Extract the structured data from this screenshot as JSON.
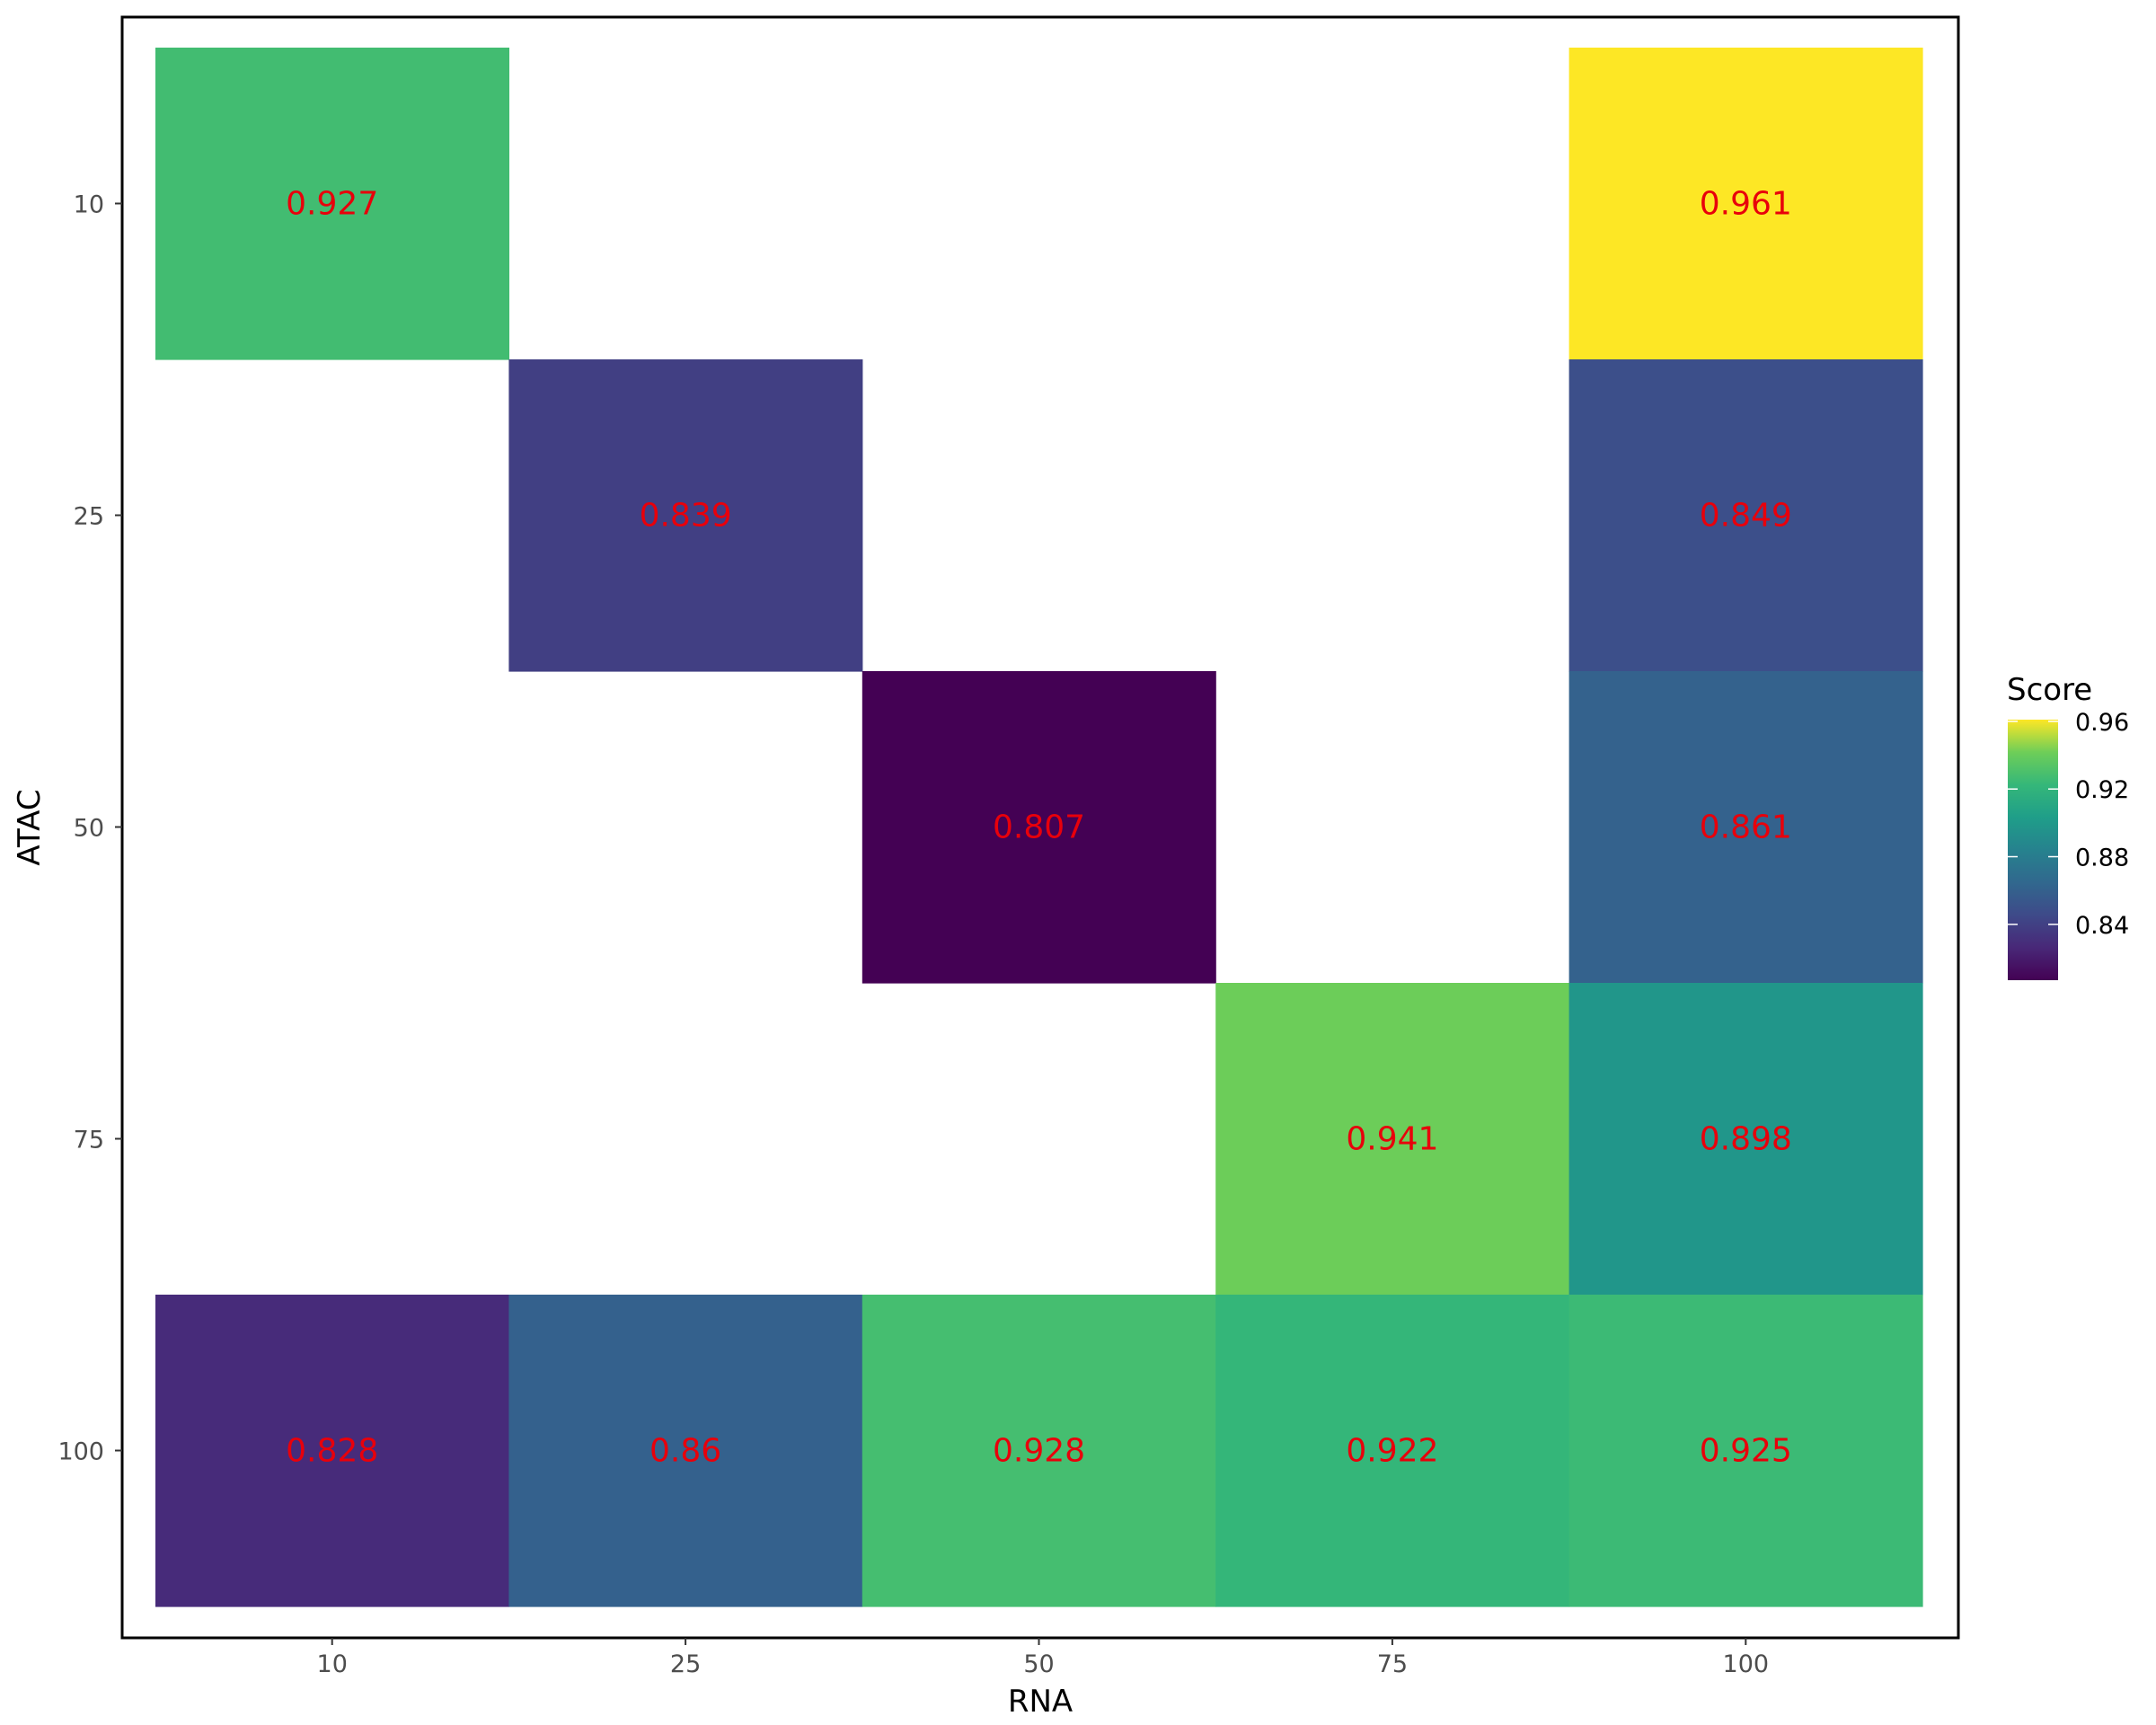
{
  "chart_data": {
    "type": "heatmap",
    "x_categories": [
      "10",
      "25",
      "50",
      "75",
      "100"
    ],
    "y_categories": [
      "10",
      "25",
      "50",
      "75",
      "100"
    ],
    "xlabel": "RNA",
    "ylabel": "ATAC",
    "cells": [
      {
        "x": "10",
        "y": "10",
        "value": 0.927,
        "label": "0.927"
      },
      {
        "x": "100",
        "y": "10",
        "value": 0.961,
        "label": "0.961"
      },
      {
        "x": "25",
        "y": "25",
        "value": 0.839,
        "label": "0.839"
      },
      {
        "x": "100",
        "y": "25",
        "value": 0.849,
        "label": "0.849"
      },
      {
        "x": "50",
        "y": "50",
        "value": 0.807,
        "label": "0.807"
      },
      {
        "x": "100",
        "y": "50",
        "value": 0.861,
        "label": "0.861"
      },
      {
        "x": "75",
        "y": "75",
        "value": 0.941,
        "label": "0.941"
      },
      {
        "x": "100",
        "y": "75",
        "value": 0.898,
        "label": "0.898"
      },
      {
        "x": "10",
        "y": "100",
        "value": 0.828,
        "label": "0.828"
      },
      {
        "x": "25",
        "y": "100",
        "value": 0.86,
        "label": "0.86"
      },
      {
        "x": "50",
        "y": "100",
        "value": 0.928,
        "label": "0.928"
      },
      {
        "x": "75",
        "y": "100",
        "value": 0.922,
        "label": "0.922"
      },
      {
        "x": "100",
        "y": "100",
        "value": 0.925,
        "label": "0.925"
      }
    ],
    "legend": {
      "title": "Score",
      "ticks": [
        "0.84",
        "0.88",
        "0.92",
        "0.96"
      ],
      "min": 0.807,
      "max": 0.961,
      "colormap": "viridis",
      "placement": "right"
    },
    "label_color": "#e8000b",
    "grid": false
  }
}
